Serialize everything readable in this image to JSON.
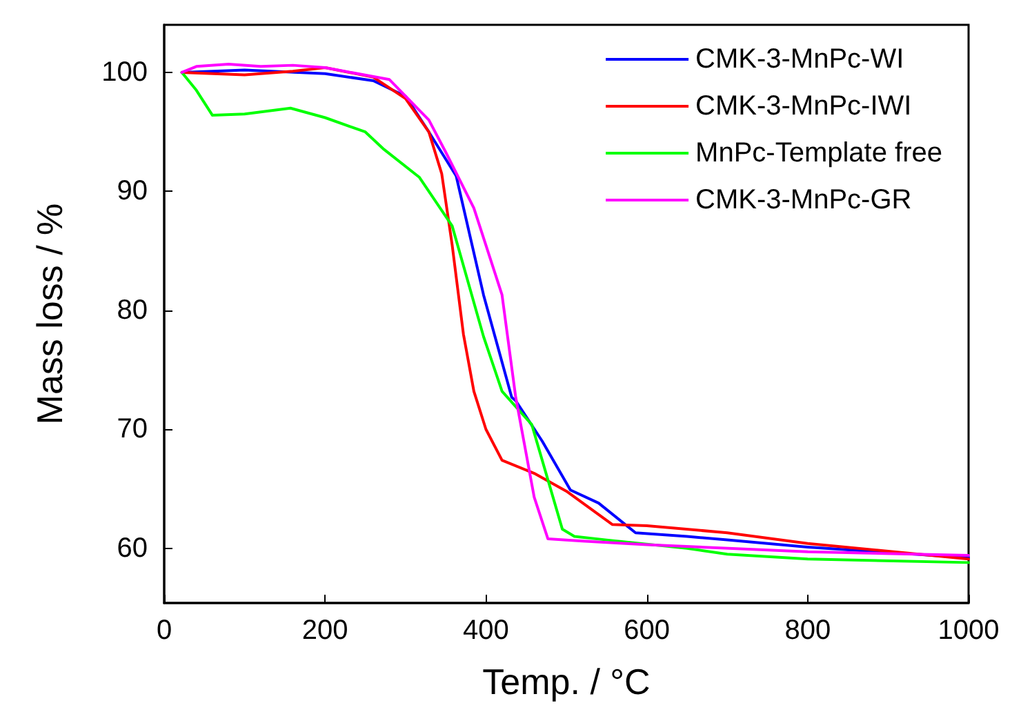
{
  "chart_data": {
    "type": "line",
    "xlabel": "Temp. / °C",
    "ylabel": "Mass loss / %",
    "xlim": [
      0,
      1000
    ],
    "xticks": [
      0,
      200,
      400,
      600,
      800,
      1000
    ],
    "ylim": [
      55.4,
      104
    ],
    "yticks": [
      60,
      70,
      80,
      90,
      100
    ],
    "grid": false,
    "legend": "top right",
    "marker": "none",
    "line_style": "solid",
    "series": [
      {
        "name": "CMK-3-MnPc-WI",
        "color": "#0000ff",
        "x": [
          22,
          100,
          200,
          260,
          300,
          329,
          363,
          397,
          432,
          437,
          470,
          505,
          540,
          586,
          650,
          700,
          800,
          1000
        ],
        "values": [
          100,
          100.2,
          99.9,
          99.3,
          98,
          95,
          91.3,
          81.3,
          72.7,
          72.4,
          69,
          64.9,
          63.8,
          61.3,
          61,
          60.7,
          60.1,
          59.2
        ]
      },
      {
        "name": "CMK-3-MnPc-IWI",
        "color": "#ff0000",
        "x": [
          22,
          100,
          160,
          200,
          260,
          300,
          329,
          345,
          358,
          372,
          385,
          400,
          420,
          460,
          500,
          557,
          600,
          700,
          800,
          1000
        ],
        "values": [
          100,
          99.8,
          100.1,
          100.4,
          99.6,
          97.8,
          95,
          91.5,
          85.5,
          78,
          73.2,
          70,
          67.4,
          66.3,
          64.8,
          62,
          61.9,
          61.3,
          60.4,
          59.1
        ]
      },
      {
        "name": "MnPc-Template free",
        "color": "#00ff00",
        "x": [
          22,
          40,
          60,
          100,
          157,
          200,
          250,
          272,
          317,
          358,
          397,
          420,
          457,
          495,
          510,
          550,
          650,
          700,
          800,
          1000
        ],
        "values": [
          100,
          98.5,
          96.4,
          96.5,
          97,
          96.2,
          95,
          93.6,
          91.2,
          87.1,
          77.8,
          73.2,
          70.4,
          61.6,
          61,
          60.7,
          60,
          59.5,
          59.1,
          58.8
        ]
      },
      {
        "name": "CMK-3-MnPc-GR",
        "color": "#ff00ff",
        "x": [
          22,
          40,
          80,
          120,
          160,
          200,
          280,
          329,
          350,
          385,
          420,
          437,
          460,
          477,
          520,
          600,
          800,
          1000
        ],
        "values": [
          100,
          100.5,
          100.7,
          100.5,
          100.6,
          100.4,
          99.4,
          96,
          93.3,
          88.6,
          81.3,
          72.7,
          64.3,
          60.8,
          60.6,
          60.3,
          59.7,
          59.4
        ]
      }
    ]
  }
}
